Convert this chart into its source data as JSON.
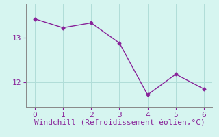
{
  "x": [
    0,
    1,
    2,
    3,
    4,
    5,
    6
  ],
  "y": [
    13.42,
    13.22,
    13.33,
    12.88,
    11.72,
    12.18,
    11.85
  ],
  "line_color": "#882299",
  "marker_style": "D",
  "marker_size": 2.5,
  "background_color": "#d6f5f0",
  "grid_color": "#b0ddd8",
  "xlabel": "Windchill (Refroidissement éolien,°C)",
  "xlabel_color": "#882299",
  "xlabel_fontsize": 8,
  "xlim": [
    -0.3,
    6.3
  ],
  "ylim": [
    11.45,
    13.75
  ],
  "yticks": [
    12,
    13
  ],
  "xticks": [
    0,
    1,
    2,
    3,
    4,
    5,
    6
  ],
  "tick_color": "#882299",
  "tick_fontsize": 8,
  "spine_color": "#888888"
}
